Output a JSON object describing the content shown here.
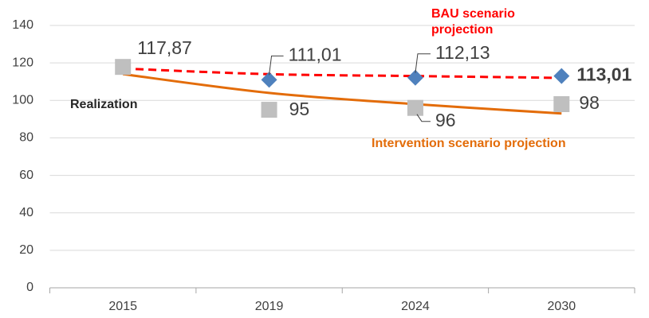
{
  "chart_data": {
    "type": "line",
    "categories": [
      "2015",
      "2019",
      "2024",
      "2030"
    ],
    "ylim": [
      0,
      140
    ],
    "yticks": [
      0,
      20,
      40,
      60,
      80,
      100,
      120,
      140
    ],
    "grid": true,
    "series": [
      {
        "name": "Realization",
        "marker": "square",
        "color": "#bfbfbf",
        "values": [
          117.87,
          95,
          96,
          98
        ],
        "value_labels": [
          "117,87",
          "95",
          "96",
          "98"
        ]
      },
      {
        "marker": "diamond",
        "color": "#4f81bd",
        "values": [
          null,
          111.01,
          112.13,
          113.01
        ],
        "value_labels": [
          null,
          "111,01",
          "112,13",
          "113,01"
        ]
      },
      {
        "name": "BAU scenario projection",
        "line": "dashed",
        "color": "#ff0000",
        "values": [
          117,
          114,
          113,
          112
        ]
      },
      {
        "name": "Intervention scenario projection",
        "line": "solid",
        "color": "#e36c09",
        "values": [
          114,
          104,
          98,
          93
        ]
      }
    ]
  }
}
